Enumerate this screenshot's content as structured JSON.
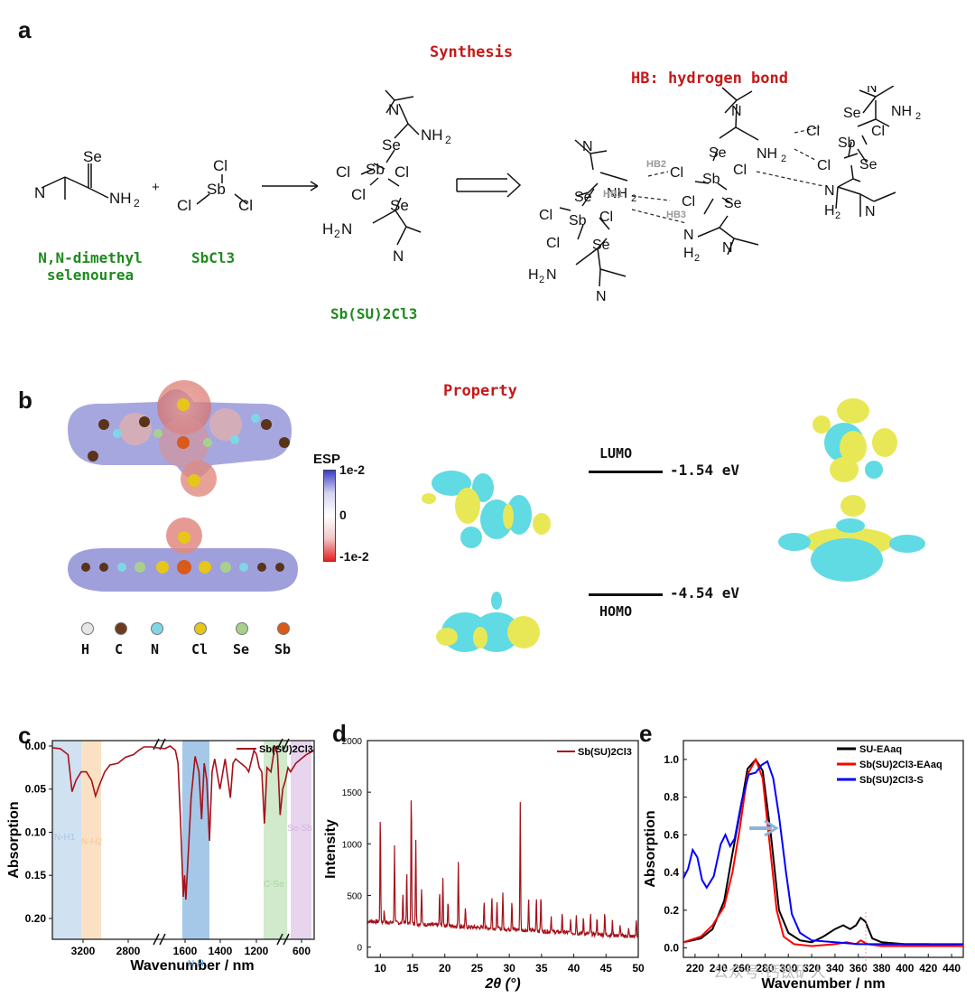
{
  "panels": {
    "a": "a",
    "b": "b",
    "c": "c",
    "d": "d",
    "e": "e"
  },
  "panel_a": {
    "title": "Synthesis",
    "hb_note": "HB: hydrogen bond",
    "reactant1_label": "N,N-dimethyl selenourea",
    "reactant2_label": "SbCl3",
    "product_label": "Sb(SU)2Cl3",
    "plus": "+",
    "hb_labels": [
      "HB2",
      "HB1",
      "HB3"
    ]
  },
  "panel_b": {
    "title": "Property",
    "esp_title": "ESP",
    "esp_ticks": [
      "1e-2",
      "0",
      "-1e-2"
    ],
    "atoms": [
      "H",
      "C",
      "N",
      "Cl",
      "Se",
      "Sb"
    ],
    "atom_colors": [
      "#e6e6e6",
      "#6b3b1f",
      "#7fd6e6",
      "#e6c619",
      "#a8d08d",
      "#d95a1a"
    ],
    "lumo_label": "LUMO",
    "lumo_energy": "-1.54 eV",
    "homo_label": "HOMO",
    "homo_energy": "-4.54 eV"
  },
  "chart_data": [
    {
      "type": "line",
      "id": "c",
      "legend": "Sb(SU)2Cl3",
      "xlabel": "Wavenumber / nm",
      "ylabel": "Absorption",
      "x_ticks": [
        "3200",
        "2800",
        "1600",
        "1400",
        "1200",
        "600"
      ],
      "y_ticks": [
        "0.00",
        "0.05",
        "0.10",
        "0.15",
        "0.20"
      ],
      "ylim": [
        0.0,
        0.22
      ],
      "axis_break": true,
      "bands": [
        {
          "label": "N-H1",
          "color": "#a9c8e6"
        },
        {
          "label": "N-H2",
          "color": "#f6c994"
        },
        {
          "label": "N-H",
          "color": "#5b9bd5"
        },
        {
          "label": "C-Se",
          "color": "#a9d9a0"
        },
        {
          "label": "Se-Sb",
          "color": "#d4b2e0"
        }
      ],
      "series": [
        {
          "name": "Sb(SU)2Cl3",
          "color": "#a5111a",
          "points": [
            [
              0.0,
              0.002
            ],
            [
              0.03,
              0.003
            ],
            [
              0.06,
              0.01
            ],
            [
              0.075,
              0.053
            ],
            [
              0.09,
              0.04
            ],
            [
              0.11,
              0.03
            ],
            [
              0.13,
              0.03
            ],
            [
              0.15,
              0.04
            ],
            [
              0.165,
              0.058
            ],
            [
              0.18,
              0.045
            ],
            [
              0.2,
              0.03
            ],
            [
              0.22,
              0.022
            ],
            [
              0.25,
              0.02
            ],
            [
              0.28,
              0.013
            ],
            [
              0.31,
              0.01
            ],
            [
              0.33,
              0.005
            ],
            [
              0.35,
              0.001
            ],
            [
              0.38,
              0.001
            ],
            [
              0.4,
              0.002
            ],
            [
              0.43,
              0.003
            ],
            [
              0.45,
              0.0
            ],
            [
              0.47,
              0.005
            ],
            [
              0.48,
              0.02
            ],
            [
              0.49,
              0.09
            ],
            [
              0.5,
              0.175
            ],
            [
              0.505,
              0.15
            ],
            [
              0.51,
              0.178
            ],
            [
              0.52,
              0.12
            ],
            [
              0.53,
              0.06
            ],
            [
              0.545,
              0.012
            ],
            [
              0.56,
              0.03
            ],
            [
              0.57,
              0.085
            ],
            [
              0.58,
              0.02
            ],
            [
              0.59,
              0.04
            ],
            [
              0.6,
              0.11
            ],
            [
              0.61,
              0.03
            ],
            [
              0.62,
              0.015
            ],
            [
              0.64,
              0.05
            ],
            [
              0.66,
              0.015
            ],
            [
              0.68,
              0.06
            ],
            [
              0.69,
              0.02
            ],
            [
              0.7,
              0.015
            ],
            [
              0.72,
              0.02
            ],
            [
              0.74,
              0.025
            ],
            [
              0.75,
              0.03
            ],
            [
              0.77,
              0.005
            ],
            [
              0.78,
              0.01
            ],
            [
              0.79,
              0.025
            ],
            [
              0.8,
              0.03
            ],
            [
              0.81,
              0.09
            ],
            [
              0.82,
              0.025
            ],
            [
              0.835,
              0.03
            ],
            [
              0.85,
              0.0
            ],
            [
              0.86,
              0.01
            ],
            [
              0.87,
              0.08
            ],
            [
              0.88,
              0.05
            ],
            [
              0.89,
              0.04
            ],
            [
              0.9,
              0.025
            ],
            [
              0.91,
              0.03
            ],
            [
              0.93,
              0.02
            ],
            [
              0.95,
              0.015
            ],
            [
              0.97,
              0.01
            ],
            [
              1.0,
              0.005
            ]
          ]
        }
      ]
    },
    {
      "type": "line",
      "id": "d",
      "legend": "Sb(SU)2Cl3",
      "xlabel": "2θ (°)",
      "ylabel": "Intensity",
      "xlim": [
        8,
        50
      ],
      "ylim": [
        -100,
        2000
      ],
      "x_ticks": [
        10,
        15,
        20,
        25,
        30,
        35,
        40,
        45,
        50
      ],
      "y_ticks": [
        0,
        500,
        1000,
        1500,
        2000
      ],
      "baseline": 200,
      "peaks": [
        [
          10.0,
          1170
        ],
        [
          10.6,
          260
        ],
        [
          12.2,
          900
        ],
        [
          13.5,
          450
        ],
        [
          14.1,
          650
        ],
        [
          14.8,
          1450
        ],
        [
          15.5,
          980
        ],
        [
          16.4,
          500
        ],
        [
          19.2,
          470
        ],
        [
          19.7,
          600
        ],
        [
          20.5,
          400
        ],
        [
          22.1,
          800
        ],
        [
          23.2,
          330
        ],
        [
          26.1,
          430
        ],
        [
          27.3,
          470
        ],
        [
          28.1,
          400
        ],
        [
          29.0,
          520
        ],
        [
          30.4,
          440
        ],
        [
          31.7,
          1410
        ],
        [
          33.0,
          470
        ],
        [
          34.2,
          480
        ],
        [
          34.9,
          500
        ],
        [
          36.5,
          310
        ],
        [
          38.2,
          330
        ],
        [
          39.5,
          280
        ],
        [
          40.4,
          340
        ],
        [
          41.5,
          300
        ],
        [
          42.6,
          350
        ],
        [
          43.6,
          320
        ],
        [
          44.8,
          380
        ],
        [
          46.0,
          300
        ],
        [
          47.2,
          260
        ],
        [
          48.5,
          230
        ],
        [
          49.7,
          320
        ]
      ]
    },
    {
      "type": "line",
      "id": "e",
      "xlabel": "Wavenumber / nm",
      "ylabel": "Absorption",
      "xlim": [
        210,
        450
      ],
      "ylim": [
        -0.05,
        1.1
      ],
      "x_ticks": [
        220,
        240,
        260,
        280,
        300,
        320,
        340,
        360,
        380,
        400,
        420,
        440
      ],
      "y_ticks": [
        0.0,
        0.2,
        0.4,
        0.6,
        0.8,
        1.0
      ],
      "series": [
        {
          "name": "SU-EAaq",
          "color": "#000000",
          "points": [
            [
              210,
              0.03
            ],
            [
              225,
              0.05
            ],
            [
              235,
              0.1
            ],
            [
              245,
              0.25
            ],
            [
              252,
              0.5
            ],
            [
              258,
              0.7
            ],
            [
              265,
              0.95
            ],
            [
              272,
              1.0
            ],
            [
              278,
              0.94
            ],
            [
              285,
              0.6
            ],
            [
              292,
              0.2
            ],
            [
              300,
              0.08
            ],
            [
              310,
              0.04
            ],
            [
              320,
              0.03
            ],
            [
              330,
              0.06
            ],
            [
              340,
              0.1
            ],
            [
              347,
              0.12
            ],
            [
              353,
              0.1
            ],
            [
              358,
              0.12
            ],
            [
              362,
              0.16
            ],
            [
              366,
              0.14
            ],
            [
              372,
              0.05
            ],
            [
              380,
              0.03
            ],
            [
              400,
              0.02
            ],
            [
              420,
              0.02
            ],
            [
              450,
              0.01
            ]
          ]
        },
        {
          "name": "Sb(SU)2Cl3-EAaq",
          "color": "#ff0000",
          "points": [
            [
              210,
              0.03
            ],
            [
              225,
              0.06
            ],
            [
              235,
              0.12
            ],
            [
              245,
              0.22
            ],
            [
              252,
              0.4
            ],
            [
              258,
              0.62
            ],
            [
              265,
              0.92
            ],
            [
              272,
              1.0
            ],
            [
              278,
              0.9
            ],
            [
              284,
              0.55
            ],
            [
              290,
              0.2
            ],
            [
              296,
              0.06
            ],
            [
              305,
              0.02
            ],
            [
              320,
              0.01
            ],
            [
              340,
              0.02
            ],
            [
              350,
              0.03
            ],
            [
              358,
              0.02
            ],
            [
              362,
              0.04
            ],
            [
              368,
              0.02
            ],
            [
              380,
              0.01
            ],
            [
              450,
              0.01
            ]
          ]
        },
        {
          "name": "Sb(SU)2Cl3-S",
          "color": "#0000ff",
          "points": [
            [
              210,
              0.37
            ],
            [
              214,
              0.42
            ],
            [
              218,
              0.52
            ],
            [
              222,
              0.48
            ],
            [
              226,
              0.36
            ],
            [
              230,
              0.32
            ],
            [
              236,
              0.38
            ],
            [
              242,
              0.55
            ],
            [
              246,
              0.6
            ],
            [
              250,
              0.54
            ],
            [
              254,
              0.58
            ],
            [
              260,
              0.78
            ],
            [
              266,
              0.92
            ],
            [
              272,
              0.93
            ],
            [
              277,
              0.97
            ],
            [
              282,
              0.99
            ],
            [
              287,
              0.9
            ],
            [
              292,
              0.7
            ],
            [
              298,
              0.4
            ],
            [
              303,
              0.18
            ],
            [
              310,
              0.08
            ],
            [
              320,
              0.04
            ],
            [
              340,
              0.03
            ],
            [
              360,
              0.02
            ],
            [
              380,
              0.02
            ],
            [
              410,
              0.02
            ],
            [
              450,
              0.02
            ]
          ]
        }
      ]
    }
  ],
  "watermark": "公众号·钙钛矿人"
}
